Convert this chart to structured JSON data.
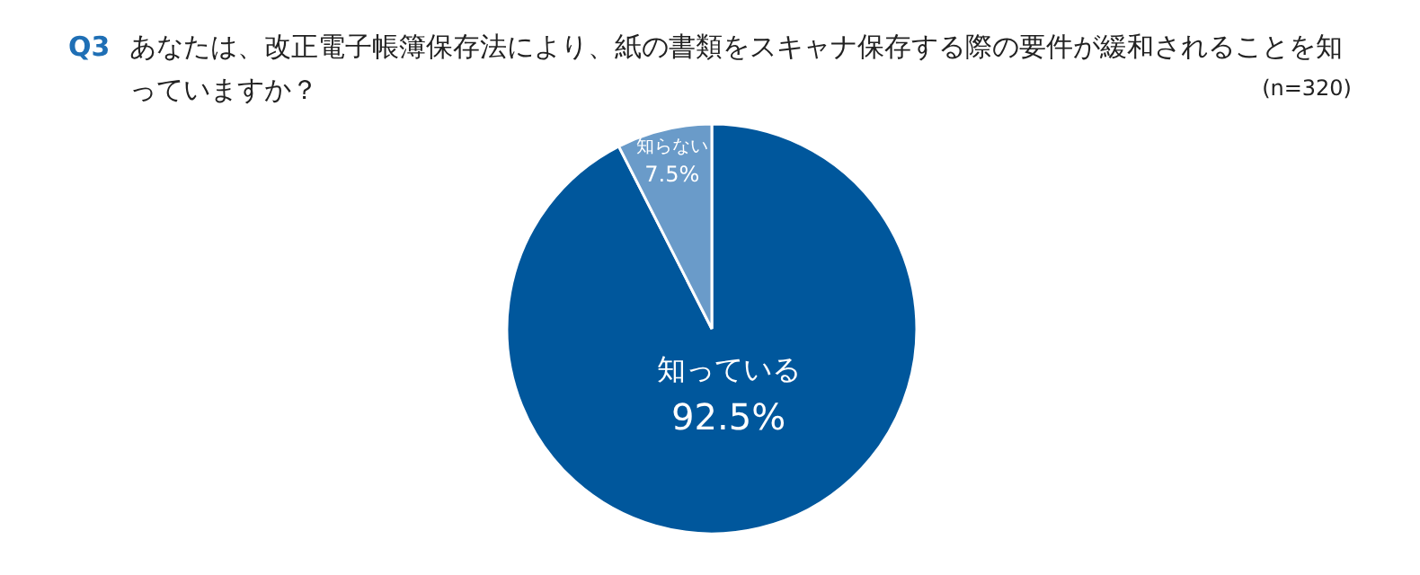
{
  "chart_data": {
    "type": "pie",
    "title": "Q3 あなたは、改正電子帳簿保存法により、紙の書類をスキャナ保存する際の要件が緩和されることを知っていますか？",
    "annotations": [
      "(n=320)"
    ],
    "categories": [
      "知っている",
      "知らない"
    ],
    "values": [
      92.5,
      7.5
    ],
    "value_labels": [
      "92.5%",
      "7.5%"
    ],
    "colors": [
      "#00579c",
      "#6a9bc9"
    ]
  }
}
